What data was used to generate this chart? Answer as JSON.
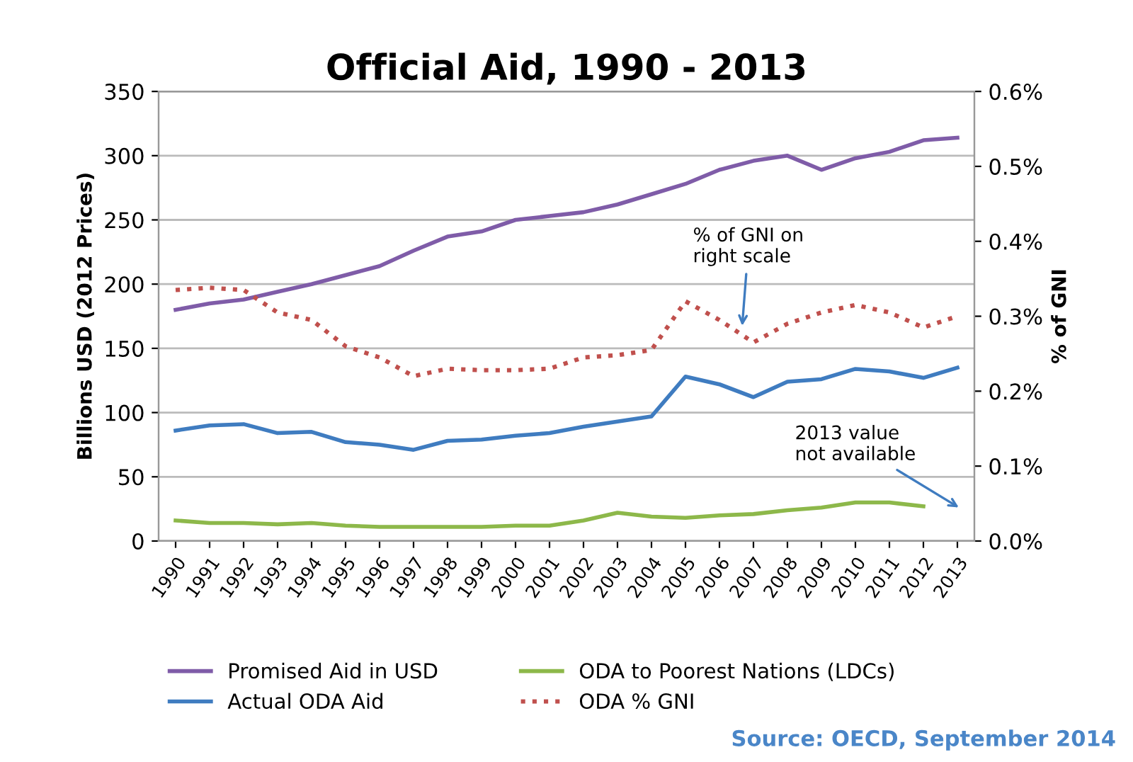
{
  "chart_data": {
    "type": "line",
    "title": "Official Aid, 1990 - 2013",
    "ylabel": "Billions USD (2012 Prices)",
    "y2label": "% of GNI",
    "categories": [
      "1990",
      "1991",
      "1992",
      "1993",
      "1994",
      "1995",
      "1996",
      "1997",
      "1998",
      "1999",
      "2000",
      "2001",
      "2002",
      "2003",
      "2004",
      "2005",
      "2006",
      "2007",
      "2008",
      "2009",
      "2010",
      "2011",
      "2012",
      "2013"
    ],
    "series": [
      {
        "name": "Promised Aid in USD",
        "color": "#7f5ca8",
        "values": [
          180,
          185,
          188,
          194,
          200,
          207,
          214,
          226,
          237,
          241,
          250,
          253,
          256,
          262,
          270,
          278,
          289,
          296,
          300,
          289,
          298,
          303,
          312,
          314
        ]
      },
      {
        "name": "Actual ODA Aid",
        "color": "#3f7cc0",
        "values": [
          86,
          90,
          91,
          84,
          85,
          77,
          75,
          71,
          78,
          79,
          82,
          84,
          89,
          93,
          97,
          128,
          122,
          112,
          124,
          126,
          134,
          132,
          127,
          135
        ]
      },
      {
        "name": "ODA to Poorest Nations (LDCs)",
        "color": "#8db84a",
        "values": [
          16,
          14,
          14,
          13,
          14,
          12,
          11,
          11,
          11,
          11,
          12,
          12,
          16,
          22,
          19,
          18,
          20,
          21,
          24,
          26,
          30,
          30,
          27,
          null
        ]
      },
      {
        "name": "ODA % GNI",
        "color": "#c0504d",
        "line_style": "dotted",
        "axis": "y2",
        "values": [
          0.335,
          0.338,
          0.335,
          0.305,
          0.295,
          0.26,
          0.245,
          0.22,
          0.23,
          0.228,
          0.228,
          0.23,
          0.245,
          0.248,
          0.255,
          0.32,
          0.295,
          0.265,
          0.29,
          0.305,
          0.315,
          0.305,
          0.285,
          0.3
        ]
      }
    ],
    "ylim": [
      0,
      350
    ],
    "yticks": [
      0,
      50,
      100,
      150,
      200,
      250,
      300,
      350
    ],
    "y2lim": [
      0,
      0.6
    ],
    "y2ticks": [
      {
        "value": 0,
        "label": "0.0%"
      },
      {
        "value": 0.1,
        "label": "0.1%"
      },
      {
        "value": 0.2,
        "label": "0.2%"
      },
      {
        "value": 0.3,
        "label": "0.3%"
      },
      {
        "value": 0.4,
        "label": "0.4%"
      },
      {
        "value": 0.5,
        "label": "0.5%"
      },
      {
        "value": 0.6,
        "label": "0.6%"
      }
    ],
    "grid": "y",
    "legend": "bottom",
    "line_style": "solid",
    "marker": "none",
    "annotations": [
      "% of GNI on\nright scale",
      "2013 value\nnot available",
      "Source: OECD, September 2014"
    ]
  }
}
